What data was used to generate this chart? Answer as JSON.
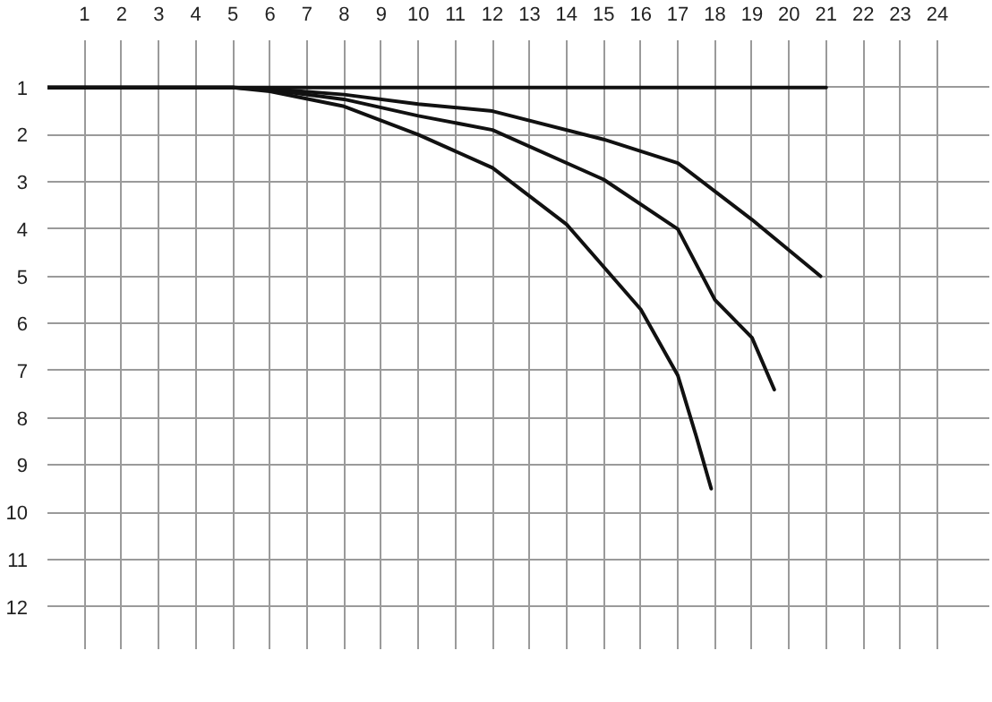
{
  "chart_data": {
    "type": "line",
    "xlim": [
      0.0,
      25.4
    ],
    "ylim": [
      12.9,
      0.0
    ],
    "xticks": [
      1,
      2,
      3,
      4,
      5,
      6,
      7,
      8,
      9,
      10,
      11,
      12,
      13,
      14,
      15,
      16,
      17,
      18,
      19,
      20,
      21,
      22,
      23,
      24
    ],
    "yticks": [
      1,
      2,
      3,
      4,
      5,
      6,
      7,
      8,
      9,
      10,
      11,
      12
    ],
    "grid": true,
    "marker": "none",
    "line_style": "solid",
    "series": [
      {
        "color": "#111111",
        "x": [
          0.0,
          5,
          10,
          15,
          18,
          21
        ],
        "values": [
          1,
          1,
          1,
          1,
          1,
          1
        ]
      },
      {
        "color": "#111111",
        "x": [
          0.0,
          5,
          6,
          8,
          10,
          12,
          15,
          17,
          19,
          20.85
        ],
        "values": [
          1,
          1,
          1.03,
          1.15,
          1.35,
          1.5,
          2.1,
          2.6,
          3.8,
          5.0
        ]
      },
      {
        "color": "#111111",
        "x": [
          0.0,
          5,
          6,
          8,
          10,
          12,
          15,
          17,
          18,
          19,
          19.6
        ],
        "values": [
          1,
          1,
          1.05,
          1.25,
          1.6,
          1.9,
          2.95,
          4.0,
          5.5,
          6.3,
          7.4
        ]
      },
      {
        "color": "#111111",
        "x": [
          0.0,
          5,
          6,
          8,
          10,
          12,
          14,
          15,
          16,
          17,
          17.5,
          17.9
        ],
        "values": [
          1,
          1,
          1.08,
          1.4,
          2.0,
          2.7,
          3.9,
          4.8,
          5.7,
          7.1,
          8.4,
          9.5
        ]
      }
    ]
  }
}
